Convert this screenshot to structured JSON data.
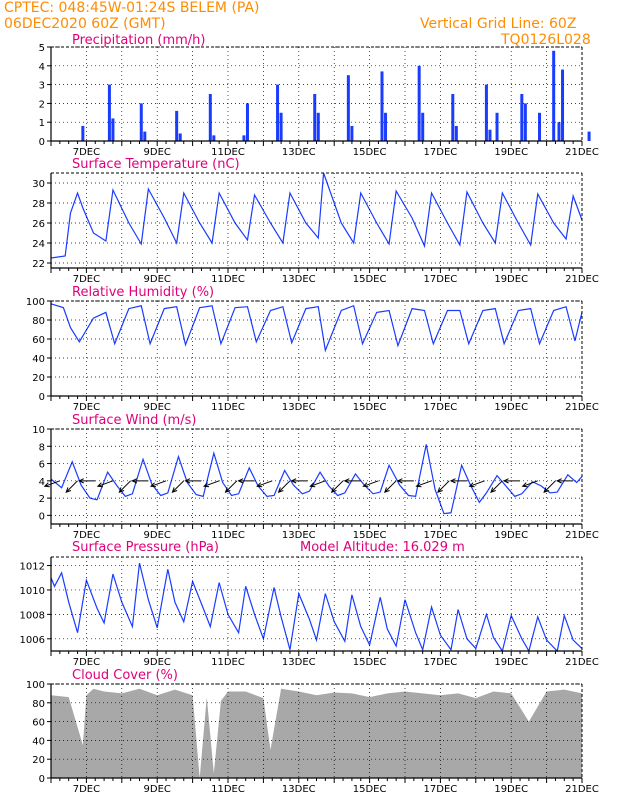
{
  "header": {
    "line1": "CPTEC:   048:45W-01:24S   BELEM (PA)",
    "line2": "06DEC2020 60Z (GMT)",
    "grid_note": "Vertical Grid Line: 60Z",
    "code": "TQ0126L028"
  },
  "panels": {
    "precip": {
      "title": "Precipitation (mm/h)"
    },
    "temp": {
      "title": "Surface Temperature (nC)"
    },
    "rh": {
      "title": "Relative Humidity (%)"
    },
    "wind": {
      "title": "Surface Wind (m/s)"
    },
    "pres": {
      "title": "Surface Pressure (hPa)",
      "extra": "Model Altitude: 16.029 m"
    },
    "cloud": {
      "title": "Cloud Cover (%)"
    }
  },
  "x_tick_labels": [
    "7DEC",
    "9DEC",
    "11DEC",
    "13DEC",
    "15DEC",
    "17DEC",
    "19DEC",
    "21DEC"
  ],
  "colors": {
    "line": "#1a3cff",
    "bar": "#1a3cff",
    "cloud": "#a8a8a8",
    "header": "#ff8c00",
    "title": "#e0007a"
  },
  "chart_data": [
    {
      "type": "bar",
      "title": "Precipitation (mm/h)",
      "x_start": "06DEC2020",
      "x_unit": "days",
      "ylim": [
        0,
        5
      ],
      "yticks": [
        0,
        1,
        2,
        3,
        4,
        5
      ],
      "series": [
        {
          "x": [
            0.9,
            1.65,
            1.75,
            2.55,
            2.65,
            3.55,
            3.65,
            4.5,
            4.6,
            5.45,
            5.55,
            6.4,
            6.5,
            7.45,
            7.55,
            8.4,
            8.5,
            9.35,
            9.45,
            10.4,
            10.5,
            11.35,
            11.45,
            12.3,
            12.4,
            12.6,
            13.3,
            13.4,
            13.8,
            14.2,
            14.35,
            14.45,
            15.2
          ],
          "values": [
            0.8,
            3.0,
            1.2,
            2.0,
            0.5,
            1.6,
            0.4,
            2.5,
            0.3,
            0.3,
            2.0,
            3.0,
            1.5,
            2.5,
            1.5,
            3.5,
            0.8,
            3.7,
            1.5,
            4.0,
            1.5,
            2.5,
            0.8,
            3.0,
            0.6,
            1.5,
            2.5,
            2.0,
            1.5,
            4.8,
            1.0,
            3.8,
            0.5
          ]
        }
      ]
    },
    {
      "type": "line",
      "title": "Surface Temperature (nC)",
      "x_start": "06DEC2020",
      "x_unit": "days",
      "ylim": [
        21.5,
        31
      ],
      "yticks": [
        22,
        24,
        26,
        28,
        30
      ],
      "series": [
        {
          "x": [
            0,
            0.4,
            0.55,
            0.75,
            0.9,
            1.2,
            1.55,
            1.75,
            2.2,
            2.55,
            2.75,
            3.2,
            3.55,
            3.75,
            4.2,
            4.55,
            4.75,
            5.2,
            5.55,
            5.75,
            6.2,
            6.55,
            6.75,
            7.2,
            7.55,
            7.7,
            8.2,
            8.55,
            8.75,
            9.2,
            9.55,
            9.75,
            10.2,
            10.55,
            10.75,
            11.2,
            11.55,
            11.75,
            12.2,
            12.55,
            12.75,
            13.2,
            13.55,
            13.75,
            14.2,
            14.55,
            14.75,
            15.0
          ],
          "values": [
            22.5,
            22.7,
            27.0,
            29.0,
            27.5,
            25.0,
            24.2,
            29.3,
            26.0,
            23.9,
            29.4,
            26.5,
            24.0,
            29.0,
            26.0,
            24.0,
            29.0,
            26.0,
            24.3,
            28.8,
            26.0,
            24.0,
            29.0,
            26.0,
            24.5,
            31.0,
            26.0,
            24.0,
            29.0,
            26.0,
            23.9,
            29.2,
            26.5,
            23.7,
            29.0,
            26.0,
            23.8,
            29.1,
            26.0,
            24.0,
            29.0,
            26.0,
            23.8,
            28.9,
            26.0,
            24.4,
            28.7,
            26.3
          ]
        }
      ]
    },
    {
      "type": "line",
      "title": "Relative Humidity (%)",
      "x_start": "06DEC2020",
      "x_unit": "days",
      "ylim": [
        0,
        100
      ],
      "yticks": [
        0,
        20,
        40,
        60,
        80,
        100
      ],
      "series": [
        {
          "x": [
            0,
            0.35,
            0.55,
            0.8,
            1.2,
            1.55,
            1.8,
            2.2,
            2.55,
            2.8,
            3.2,
            3.55,
            3.8,
            4.2,
            4.55,
            4.8,
            5.2,
            5.55,
            5.8,
            6.2,
            6.55,
            6.8,
            7.2,
            7.55,
            7.75,
            8.2,
            8.55,
            8.8,
            9.2,
            9.55,
            9.8,
            10.2,
            10.55,
            10.8,
            11.2,
            11.55,
            11.8,
            12.2,
            12.55,
            12.8,
            13.2,
            13.55,
            13.8,
            14.2,
            14.55,
            14.8,
            15.0
          ],
          "values": [
            97,
            93,
            72,
            57,
            82,
            88,
            55,
            92,
            95,
            55,
            92,
            94,
            54,
            93,
            95,
            55,
            93,
            94,
            57,
            90,
            94,
            56,
            92,
            94,
            48,
            90,
            95,
            55,
            88,
            90,
            53,
            92,
            90,
            55,
            90,
            90,
            55,
            90,
            92,
            55,
            90,
            92,
            55,
            90,
            94,
            58,
            88
          ]
        }
      ]
    },
    {
      "type": "line",
      "title": "Surface Wind (m/s)",
      "x_start": "06DEC2020",
      "x_unit": "days",
      "ylim": [
        -1,
        10
      ],
      "yticks": [
        0,
        2,
        4,
        6,
        8,
        10
      ],
      "series": [
        {
          "x": [
            0,
            0.3,
            0.6,
            0.85,
            1.1,
            1.3,
            1.6,
            1.85,
            2.1,
            2.3,
            2.6,
            2.85,
            3.1,
            3.3,
            3.6,
            3.85,
            4.1,
            4.3,
            4.6,
            4.85,
            5.1,
            5.3,
            5.6,
            5.85,
            6.1,
            6.3,
            6.6,
            6.85,
            7.1,
            7.3,
            7.6,
            7.85,
            8.1,
            8.3,
            8.6,
            8.85,
            9.1,
            9.3,
            9.55,
            9.85,
            10.1,
            10.3,
            10.6,
            10.85,
            11.1,
            11.3,
            11.6,
            11.85,
            12.1,
            12.3,
            12.6,
            12.85,
            13.1,
            13.3,
            13.6,
            13.85,
            14.1,
            14.3,
            14.6,
            14.85,
            15.0
          ],
          "values": [
            4.2,
            3.2,
            6.2,
            3.5,
            2.0,
            1.8,
            5.0,
            3.5,
            2.2,
            2.5,
            6.5,
            3.6,
            2.3,
            2.6,
            6.8,
            3.8,
            2.4,
            2.2,
            7.2,
            3.8,
            2.3,
            2.5,
            5.5,
            3.4,
            2.2,
            2.3,
            5.2,
            3.5,
            2.5,
            2.8,
            5.0,
            3.4,
            2.3,
            2.6,
            4.8,
            3.5,
            2.5,
            2.7,
            5.8,
            3.5,
            2.3,
            2.2,
            8.2,
            3.0,
            0.2,
            0.3,
            5.8,
            3.5,
            1.5,
            2.6,
            4.6,
            3.4,
            2.2,
            2.5,
            3.9,
            3.4,
            2.6,
            2.7,
            4.7,
            3.8,
            4.5
          ]
        }
      ]
    },
    {
      "type": "line",
      "title": "Surface Pressure (hPa)",
      "x_start": "06DEC2020",
      "x_unit": "days",
      "ylim": [
        1005,
        1012.7
      ],
      "yticks": [
        1006,
        1008,
        1010,
        1012
      ],
      "series": [
        {
          "x": [
            0,
            0.1,
            0.3,
            0.5,
            0.75,
            1.0,
            1.3,
            1.5,
            1.75,
            2.0,
            2.3,
            2.5,
            2.75,
            3.0,
            3.3,
            3.5,
            3.75,
            4.0,
            4.3,
            4.5,
            4.75,
            5.0,
            5.3,
            5.5,
            5.75,
            6.0,
            6.3,
            6.5,
            6.75,
            7.0,
            7.3,
            7.5,
            7.75,
            8.0,
            8.3,
            8.5,
            8.75,
            9.0,
            9.3,
            9.5,
            9.75,
            10.0,
            10.3,
            10.5,
            10.75,
            11.0,
            11.3,
            11.5,
            11.75,
            12.0,
            12.3,
            12.5,
            12.75,
            13.0,
            13.3,
            13.5,
            13.75,
            14.0,
            14.3,
            14.5,
            14.75,
            15.0
          ],
          "values": [
            1011.0,
            1010.3,
            1011.4,
            1009.0,
            1006.5,
            1010.8,
            1008.5,
            1007.3,
            1011.3,
            1009.0,
            1007.0,
            1012.2,
            1009.2,
            1006.9,
            1011.7,
            1009.0,
            1007.4,
            1010.7,
            1008.5,
            1007.0,
            1010.6,
            1008.0,
            1006.5,
            1010.3,
            1008.0,
            1006.0,
            1010.2,
            1007.8,
            1005.1,
            1009.7,
            1007.6,
            1005.9,
            1009.7,
            1007.4,
            1005.8,
            1009.6,
            1007.0,
            1005.5,
            1009.4,
            1006.8,
            1005.4,
            1009.2,
            1006.5,
            1005.1,
            1008.6,
            1006.3,
            1005.1,
            1008.4,
            1006.0,
            1005.2,
            1008.0,
            1006.1,
            1005.0,
            1007.9,
            1006.0,
            1005.0,
            1007.8,
            1005.9,
            1005.0,
            1007.9,
            1005.9,
            1005.2
          ]
        }
      ]
    },
    {
      "type": "area",
      "title": "Cloud Cover (%)",
      "x_start": "06DEC2020",
      "x_unit": "days",
      "ylim": [
        0,
        100
      ],
      "yticks": [
        0,
        20,
        40,
        60,
        80,
        100
      ],
      "series": [
        {
          "x": [
            0,
            0.5,
            0.9,
            1.0,
            1.2,
            1.5,
            2.0,
            2.5,
            3.0,
            3.5,
            4.0,
            4.2,
            4.4,
            4.6,
            4.8,
            5.0,
            5.5,
            6.0,
            6.2,
            6.5,
            7.0,
            7.5,
            8.0,
            8.5,
            9.0,
            9.5,
            10.0,
            10.5,
            11.0,
            11.5,
            12.0,
            12.5,
            13.0,
            13.5,
            14.0,
            14.5,
            15.0
          ],
          "values": [
            88,
            86,
            35,
            88,
            95,
            92,
            90,
            95,
            88,
            94,
            88,
            0,
            86,
            5,
            82,
            92,
            92,
            85,
            30,
            95,
            92,
            88,
            91,
            90,
            86,
            90,
            92,
            90,
            88,
            90,
            85,
            92,
            90,
            60,
            92,
            94,
            90
          ]
        }
      ]
    }
  ]
}
